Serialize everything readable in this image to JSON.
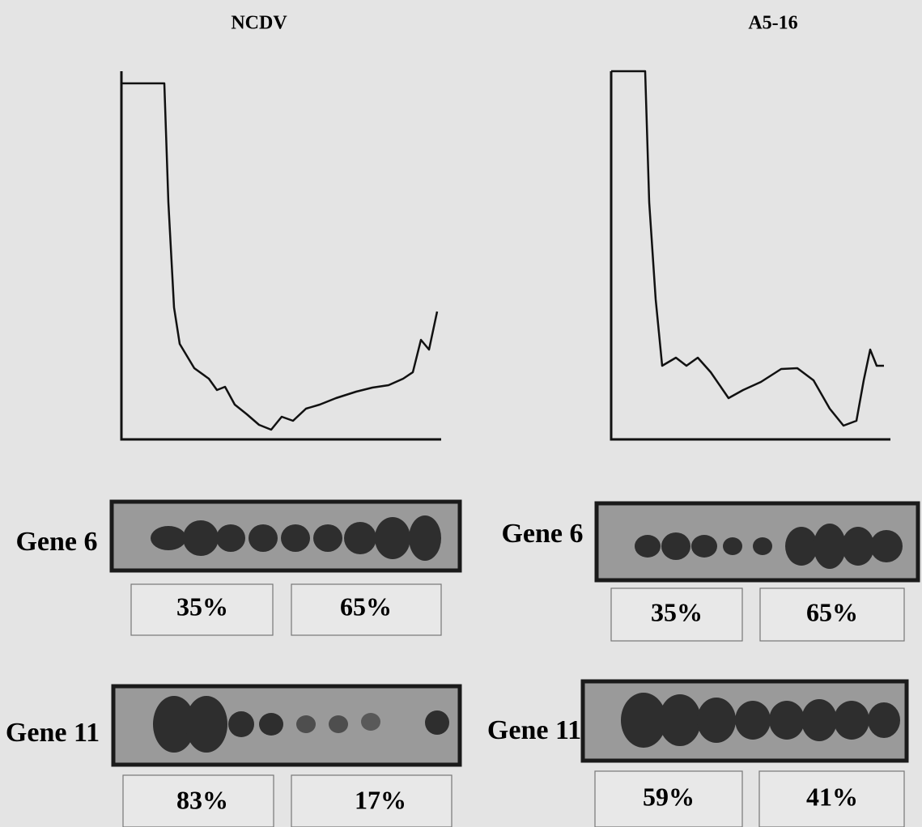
{
  "panels": [
    {
      "title": "NCDV",
      "genes": [
        {
          "label": "Gene 6",
          "percents": [
            "35%",
            "65%"
          ]
        },
        {
          "label": "Gene 11",
          "percents": [
            "83%",
            "17%"
          ]
        }
      ]
    },
    {
      "title": "A5-16",
      "genes": [
        {
          "label": "Gene 6",
          "percents": [
            "35%",
            "65%"
          ]
        },
        {
          "label": "Gene 11",
          "percents": [
            "59%",
            "41%"
          ]
        }
      ]
    }
  ]
}
